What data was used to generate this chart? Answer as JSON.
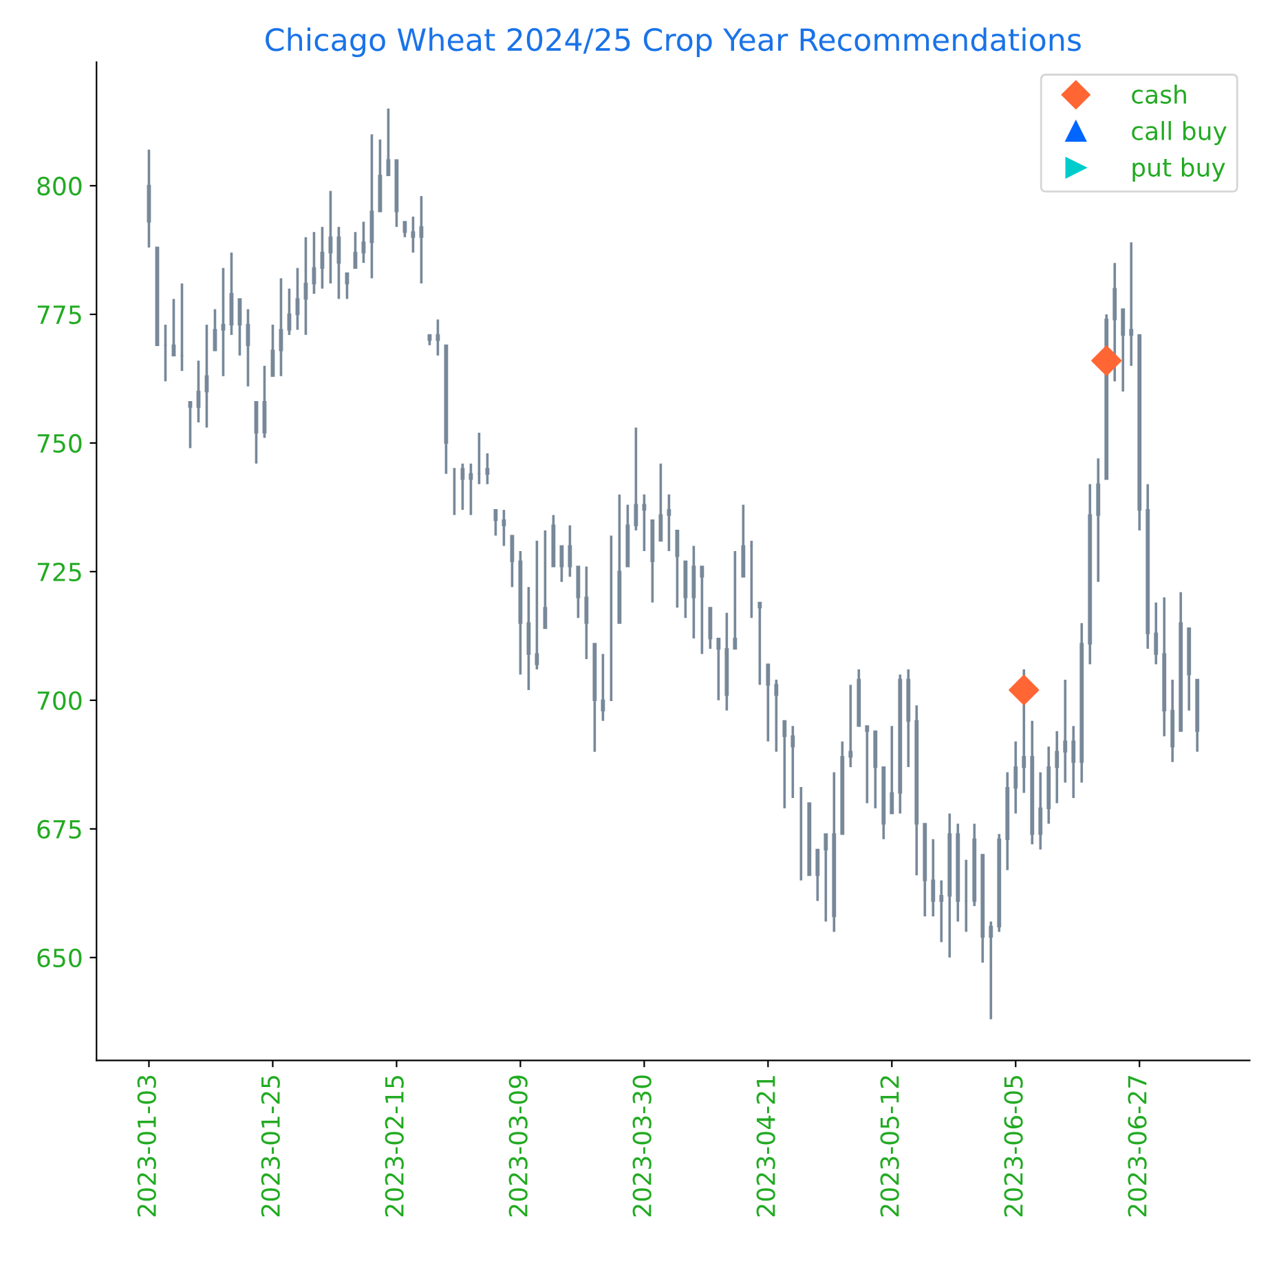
{
  "chart_data": {
    "type": "candlestick",
    "title": "Chicago Wheat 2024/25 Crop Year Recommendations",
    "categories": [
      "2023-01-03",
      null,
      null,
      null,
      null,
      null,
      null,
      null,
      null,
      null,
      null,
      null,
      null,
      null,
      null,
      "2023-01-25",
      null,
      null,
      null,
      null,
      null,
      null,
      null,
      null,
      null,
      null,
      null,
      null,
      null,
      null,
      "2023-02-15",
      null,
      null,
      null,
      null,
      null,
      null,
      null,
      null,
      null,
      null,
      null,
      null,
      null,
      null,
      "2023-03-09",
      null,
      null,
      null,
      null,
      null,
      null,
      null,
      null,
      null,
      null,
      null,
      null,
      null,
      null,
      "2023-03-30",
      null,
      null,
      null,
      null,
      null,
      null,
      null,
      null,
      null,
      null,
      null,
      null,
      null,
      null,
      "2023-04-21",
      null,
      null,
      null,
      null,
      null,
      null,
      null,
      null,
      null,
      null,
      null,
      null,
      null,
      null,
      "2023-05-12",
      null,
      null,
      null,
      null,
      null,
      null,
      null,
      null,
      null,
      null,
      null,
      null,
      null,
      null,
      "2023-06-05",
      null,
      null,
      null,
      null,
      null,
      null,
      null,
      null,
      null,
      null,
      null,
      null,
      null,
      null,
      "2023-06-27",
      null,
      null,
      null,
      null,
      null,
      null,
      null
    ],
    "color": "#778899",
    "ohlc": [
      [
        800,
        807,
        788,
        793
      ],
      [
        788,
        788,
        769,
        769
      ],
      [
        769,
        773,
        762,
        769
      ],
      [
        769,
        778,
        767,
        767
      ],
      [
        767,
        781,
        764,
        767
      ],
      [
        758,
        758,
        749,
        757
      ],
      [
        757,
        766,
        754,
        760
      ],
      [
        760,
        773,
        753,
        763
      ],
      [
        768,
        776,
        768,
        772
      ],
      [
        772,
        784,
        763,
        773
      ],
      [
        773,
        787,
        771,
        779
      ],
      [
        778,
        778,
        767,
        773
      ],
      [
        773,
        776,
        761,
        769
      ],
      [
        758,
        758,
        746,
        752
      ],
      [
        752,
        765,
        751,
        758
      ],
      [
        763,
        773,
        763,
        768
      ],
      [
        768,
        782,
        763,
        772
      ],
      [
        772,
        780,
        771,
        775
      ],
      [
        775,
        784,
        772,
        778
      ],
      [
        778,
        790,
        771,
        781
      ],
      [
        781,
        791,
        779,
        784
      ],
      [
        784,
        792,
        780,
        787
      ],
      [
        787,
        799,
        781,
        790
      ],
      [
        790,
        792,
        778,
        785
      ],
      [
        783,
        783,
        778,
        781
      ],
      [
        784,
        791,
        784,
        787
      ],
      [
        787,
        793,
        785,
        789
      ],
      [
        789,
        810,
        782,
        795
      ],
      [
        795,
        809,
        795,
        802
      ],
      [
        802,
        815,
        802,
        805
      ],
      [
        805,
        805,
        792,
        795
      ],
      [
        793,
        793,
        790,
        791
      ],
      [
        791,
        794,
        787,
        790
      ],
      [
        790,
        798,
        781,
        792
      ],
      [
        771,
        771,
        769,
        770
      ],
      [
        770,
        774,
        767,
        771
      ],
      [
        769,
        769,
        744,
        750
      ],
      [
        745,
        745,
        736,
        745
      ],
      [
        745,
        746,
        737,
        743
      ],
      [
        743,
        746,
        736,
        744
      ],
      [
        744,
        752,
        742,
        744
      ],
      [
        744,
        748,
        742,
        745
      ],
      [
        737,
        737,
        732,
        735
      ],
      [
        735,
        737,
        730,
        734
      ],
      [
        732,
        732,
        722,
        727
      ],
      [
        727,
        729,
        705,
        715
      ],
      [
        715,
        722,
        702,
        709
      ],
      [
        709,
        731,
        706,
        707
      ],
      [
        714,
        733,
        714,
        718
      ],
      [
        726,
        736,
        726,
        734
      ],
      [
        730,
        730,
        723,
        726
      ],
      [
        726,
        734,
        724,
        730
      ],
      [
        726,
        726,
        716,
        720
      ],
      [
        720,
        726,
        708,
        715
      ],
      [
        711,
        711,
        690,
        700
      ],
      [
        700,
        709,
        696,
        698
      ],
      [
        700,
        732,
        700,
        700
      ],
      [
        715,
        740,
        715,
        725
      ],
      [
        726,
        738,
        726,
        734
      ],
      [
        734,
        753,
        733,
        738
      ],
      [
        738,
        740,
        729,
        737
      ],
      [
        735,
        735,
        719,
        727
      ],
      [
        731,
        746,
        731,
        736
      ],
      [
        736,
        740,
        729,
        737
      ],
      [
        733,
        733,
        718,
        728
      ],
      [
        727,
        727,
        716,
        720
      ],
      [
        720,
        730,
        712,
        726
      ],
      [
        726,
        726,
        709,
        724
      ],
      [
        718,
        718,
        710,
        712
      ],
      [
        712,
        712,
        700,
        710
      ],
      [
        710,
        717,
        698,
        701
      ],
      [
        710,
        729,
        710,
        712
      ],
      [
        724,
        738,
        724,
        730
      ],
      [
        730,
        731,
        716,
        730
      ],
      [
        719,
        719,
        703,
        718
      ],
      [
        707,
        707,
        692,
        703
      ],
      [
        703,
        704,
        690,
        701
      ],
      [
        696,
        696,
        679,
        693
      ],
      [
        693,
        695,
        681,
        691
      ],
      [
        683,
        683,
        665,
        683
      ],
      [
        680,
        680,
        666,
        666
      ],
      [
        666,
        671,
        661,
        671
      ],
      [
        671,
        674,
        657,
        674
      ],
      [
        674,
        686,
        655,
        658
      ],
      [
        674,
        692,
        674,
        689
      ],
      [
        689,
        703,
        687,
        690
      ],
      [
        695,
        706,
        695,
        704
      ],
      [
        695,
        695,
        680,
        694
      ],
      [
        694,
        694,
        679,
        687
      ],
      [
        687,
        687,
        673,
        676
      ],
      [
        678,
        695,
        678,
        682
      ],
      [
        682,
        705,
        678,
        704
      ],
      [
        704,
        706,
        687,
        696
      ],
      [
        696,
        699,
        666,
        676
      ],
      [
        676,
        676,
        658,
        665
      ],
      [
        665,
        673,
        658,
        661
      ],
      [
        661,
        665,
        653,
        662
      ],
      [
        662,
        678,
        650,
        674
      ],
      [
        674,
        676,
        657,
        661
      ],
      [
        661,
        669,
        655,
        661
      ],
      [
        661,
        676,
        660,
        673
      ],
      [
        670,
        670,
        649,
        654
      ],
      [
        654,
        657,
        638,
        656
      ],
      [
        656,
        674,
        655,
        673
      ],
      [
        673,
        686,
        667,
        683
      ],
      [
        683,
        692,
        678,
        687
      ],
      [
        687,
        706,
        682,
        689
      ],
      [
        689,
        696,
        672,
        674
      ],
      [
        674,
        686,
        671,
        679
      ],
      [
        679,
        691,
        676,
        687
      ],
      [
        687,
        694,
        680,
        690
      ],
      [
        690,
        704,
        684,
        692
      ],
      [
        692,
        695,
        681,
        688
      ],
      [
        688,
        715,
        684,
        711
      ],
      [
        711,
        742,
        707,
        736
      ],
      [
        736,
        747,
        723,
        742
      ],
      [
        743,
        775,
        743,
        774
      ],
      [
        774,
        785,
        762,
        780
      ],
      [
        776,
        776,
        760,
        771
      ],
      [
        771,
        789,
        765,
        772
      ],
      [
        771,
        771,
        733,
        737
      ],
      [
        737,
        742,
        710,
        713
      ],
      [
        713,
        719,
        707,
        709
      ],
      [
        709,
        720,
        693,
        698
      ],
      [
        698,
        704,
        688,
        691
      ],
      [
        694,
        721,
        694,
        715
      ],
      [
        714,
        714,
        698,
        705
      ],
      [
        704,
        704,
        690,
        694
      ]
    ],
    "series": [
      {
        "name": "cash",
        "type": "scatter",
        "marker": "diamond",
        "color": "#ff6633",
        "values": [
          null,
          null,
          null,
          null,
          null,
          null,
          null,
          null,
          null,
          null,
          null,
          null,
          null,
          null,
          null,
          null,
          null,
          null,
          null,
          null,
          null,
          null,
          null,
          null,
          null,
          null,
          null,
          null,
          null,
          null,
          null,
          null,
          null,
          null,
          null,
          null,
          null,
          null,
          null,
          null,
          null,
          null,
          null,
          null,
          null,
          null,
          null,
          null,
          null,
          null,
          null,
          null,
          null,
          null,
          null,
          null,
          null,
          null,
          null,
          null,
          null,
          null,
          null,
          null,
          null,
          null,
          null,
          null,
          null,
          null,
          null,
          null,
          null,
          null,
          null,
          null,
          null,
          null,
          null,
          null,
          null,
          null,
          null,
          null,
          null,
          null,
          null,
          null,
          null,
          null,
          null,
          null,
          null,
          null,
          null,
          null,
          null,
          null,
          null,
          null,
          null,
          null,
          null,
          null,
          null,
          null,
          702,
          null,
          null,
          null,
          null,
          null,
          null,
          null,
          null,
          null,
          766,
          null,
          null,
          null,
          null,
          null,
          null,
          null,
          null,
          null,
          null,
          null
        ]
      },
      {
        "name": "call buy",
        "type": "scatter",
        "marker": "triangle",
        "color": "#0066ff",
        "values": [
          null,
          null,
          null,
          null,
          null,
          null,
          null,
          null,
          null,
          null,
          null,
          null,
          null,
          null,
          null,
          null,
          null,
          null,
          null,
          null,
          null,
          null,
          null,
          null,
          null,
          null,
          null,
          null,
          null,
          null,
          null,
          null,
          null,
          null,
          null,
          null,
          null,
          null,
          null,
          null,
          null,
          null,
          null,
          null,
          null,
          null,
          null,
          null,
          null,
          null,
          null,
          null,
          null,
          null,
          null,
          null,
          null,
          null,
          null,
          null,
          null,
          null,
          null,
          null,
          null,
          null,
          null,
          null,
          null,
          null,
          null,
          null,
          null,
          null,
          null,
          null,
          null,
          null,
          null,
          null,
          null,
          null,
          null,
          null,
          null,
          null,
          null,
          null,
          null,
          null,
          null,
          null,
          null,
          null,
          null,
          null,
          null,
          null,
          null,
          null,
          null,
          null,
          null,
          null,
          null,
          null,
          null,
          null,
          null,
          null,
          null,
          null,
          null,
          null,
          null,
          null,
          null,
          null,
          null,
          null,
          null,
          null,
          null,
          null,
          null,
          null,
          null,
          null
        ]
      },
      {
        "name": "put buy",
        "type": "scatter",
        "marker": "triangle_right",
        "color": "#00cccc",
        "values": [
          null,
          null,
          null,
          null,
          null,
          null,
          null,
          null,
          null,
          null,
          null,
          null,
          null,
          null,
          null,
          null,
          null,
          null,
          null,
          null,
          null,
          null,
          null,
          null,
          null,
          null,
          null,
          null,
          null,
          null,
          null,
          null,
          null,
          null,
          null,
          null,
          null,
          null,
          null,
          null,
          null,
          null,
          null,
          null,
          null,
          null,
          null,
          null,
          null,
          null,
          null,
          null,
          null,
          null,
          null,
          null,
          null,
          null,
          null,
          null,
          null,
          null,
          null,
          null,
          null,
          null,
          null,
          null,
          null,
          null,
          null,
          null,
          null,
          null,
          null,
          null,
          null,
          null,
          null,
          null,
          null,
          null,
          null,
          null,
          null,
          null,
          null,
          null,
          null,
          null,
          null,
          null,
          null,
          null,
          null,
          null,
          null,
          null,
          null,
          null,
          null,
          null,
          null,
          null,
          null,
          null,
          null,
          null,
          null,
          null,
          null,
          null,
          null,
          null,
          null,
          null,
          null,
          null,
          null,
          null,
          null,
          null,
          null,
          null,
          null,
          null,
          null,
          null
        ]
      }
    ],
    "ylim": [
      630,
      824
    ],
    "yticks": [
      650,
      675,
      700,
      725,
      750,
      775,
      800
    ],
    "legend": "top right"
  }
}
